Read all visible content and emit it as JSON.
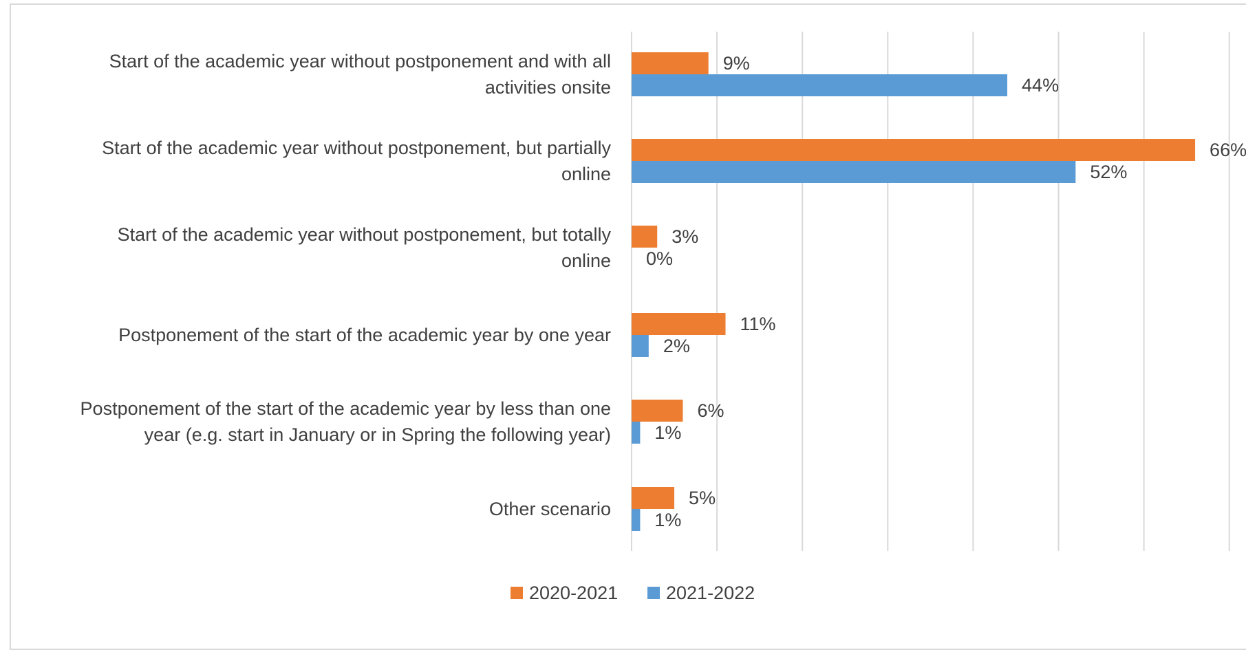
{
  "chart_data": {
    "type": "bar",
    "orientation": "horizontal",
    "categories": [
      [
        "Start of the academic year without postponement and with all",
        "activities onsite"
      ],
      [
        "Start of the academic year without postponement, but partially",
        "online"
      ],
      [
        "Start of the academic year without postponement, but totally",
        "online"
      ],
      [
        "Postponement of the start of the academic year by one year"
      ],
      [
        "Postponement of the start of the academic year by less than one",
        "year (e.g. start in January or in Spring the following year)"
      ],
      [
        "Other scenario"
      ]
    ],
    "series": [
      {
        "name": "2020-2021",
        "color": "#ed7d31",
        "values": [
          9,
          66,
          3,
          11,
          6,
          5
        ],
        "labels": [
          "9%",
          "66%",
          "3%",
          "11%",
          "6%",
          "5%"
        ]
      },
      {
        "name": "2021-2022",
        "color": "#5b9bd5",
        "values": [
          44,
          52,
          0,
          2,
          1,
          1
        ],
        "labels": [
          "44%",
          "52%",
          "0%",
          "2%",
          "1%",
          "1%"
        ]
      }
    ],
    "xlim": [
      0,
      70
    ],
    "x_gridline_step": 10,
    "grid": true,
    "x_tick_labels_shown": false,
    "legend_position": "bottom",
    "title": "",
    "xlabel": "",
    "ylabel": ""
  }
}
